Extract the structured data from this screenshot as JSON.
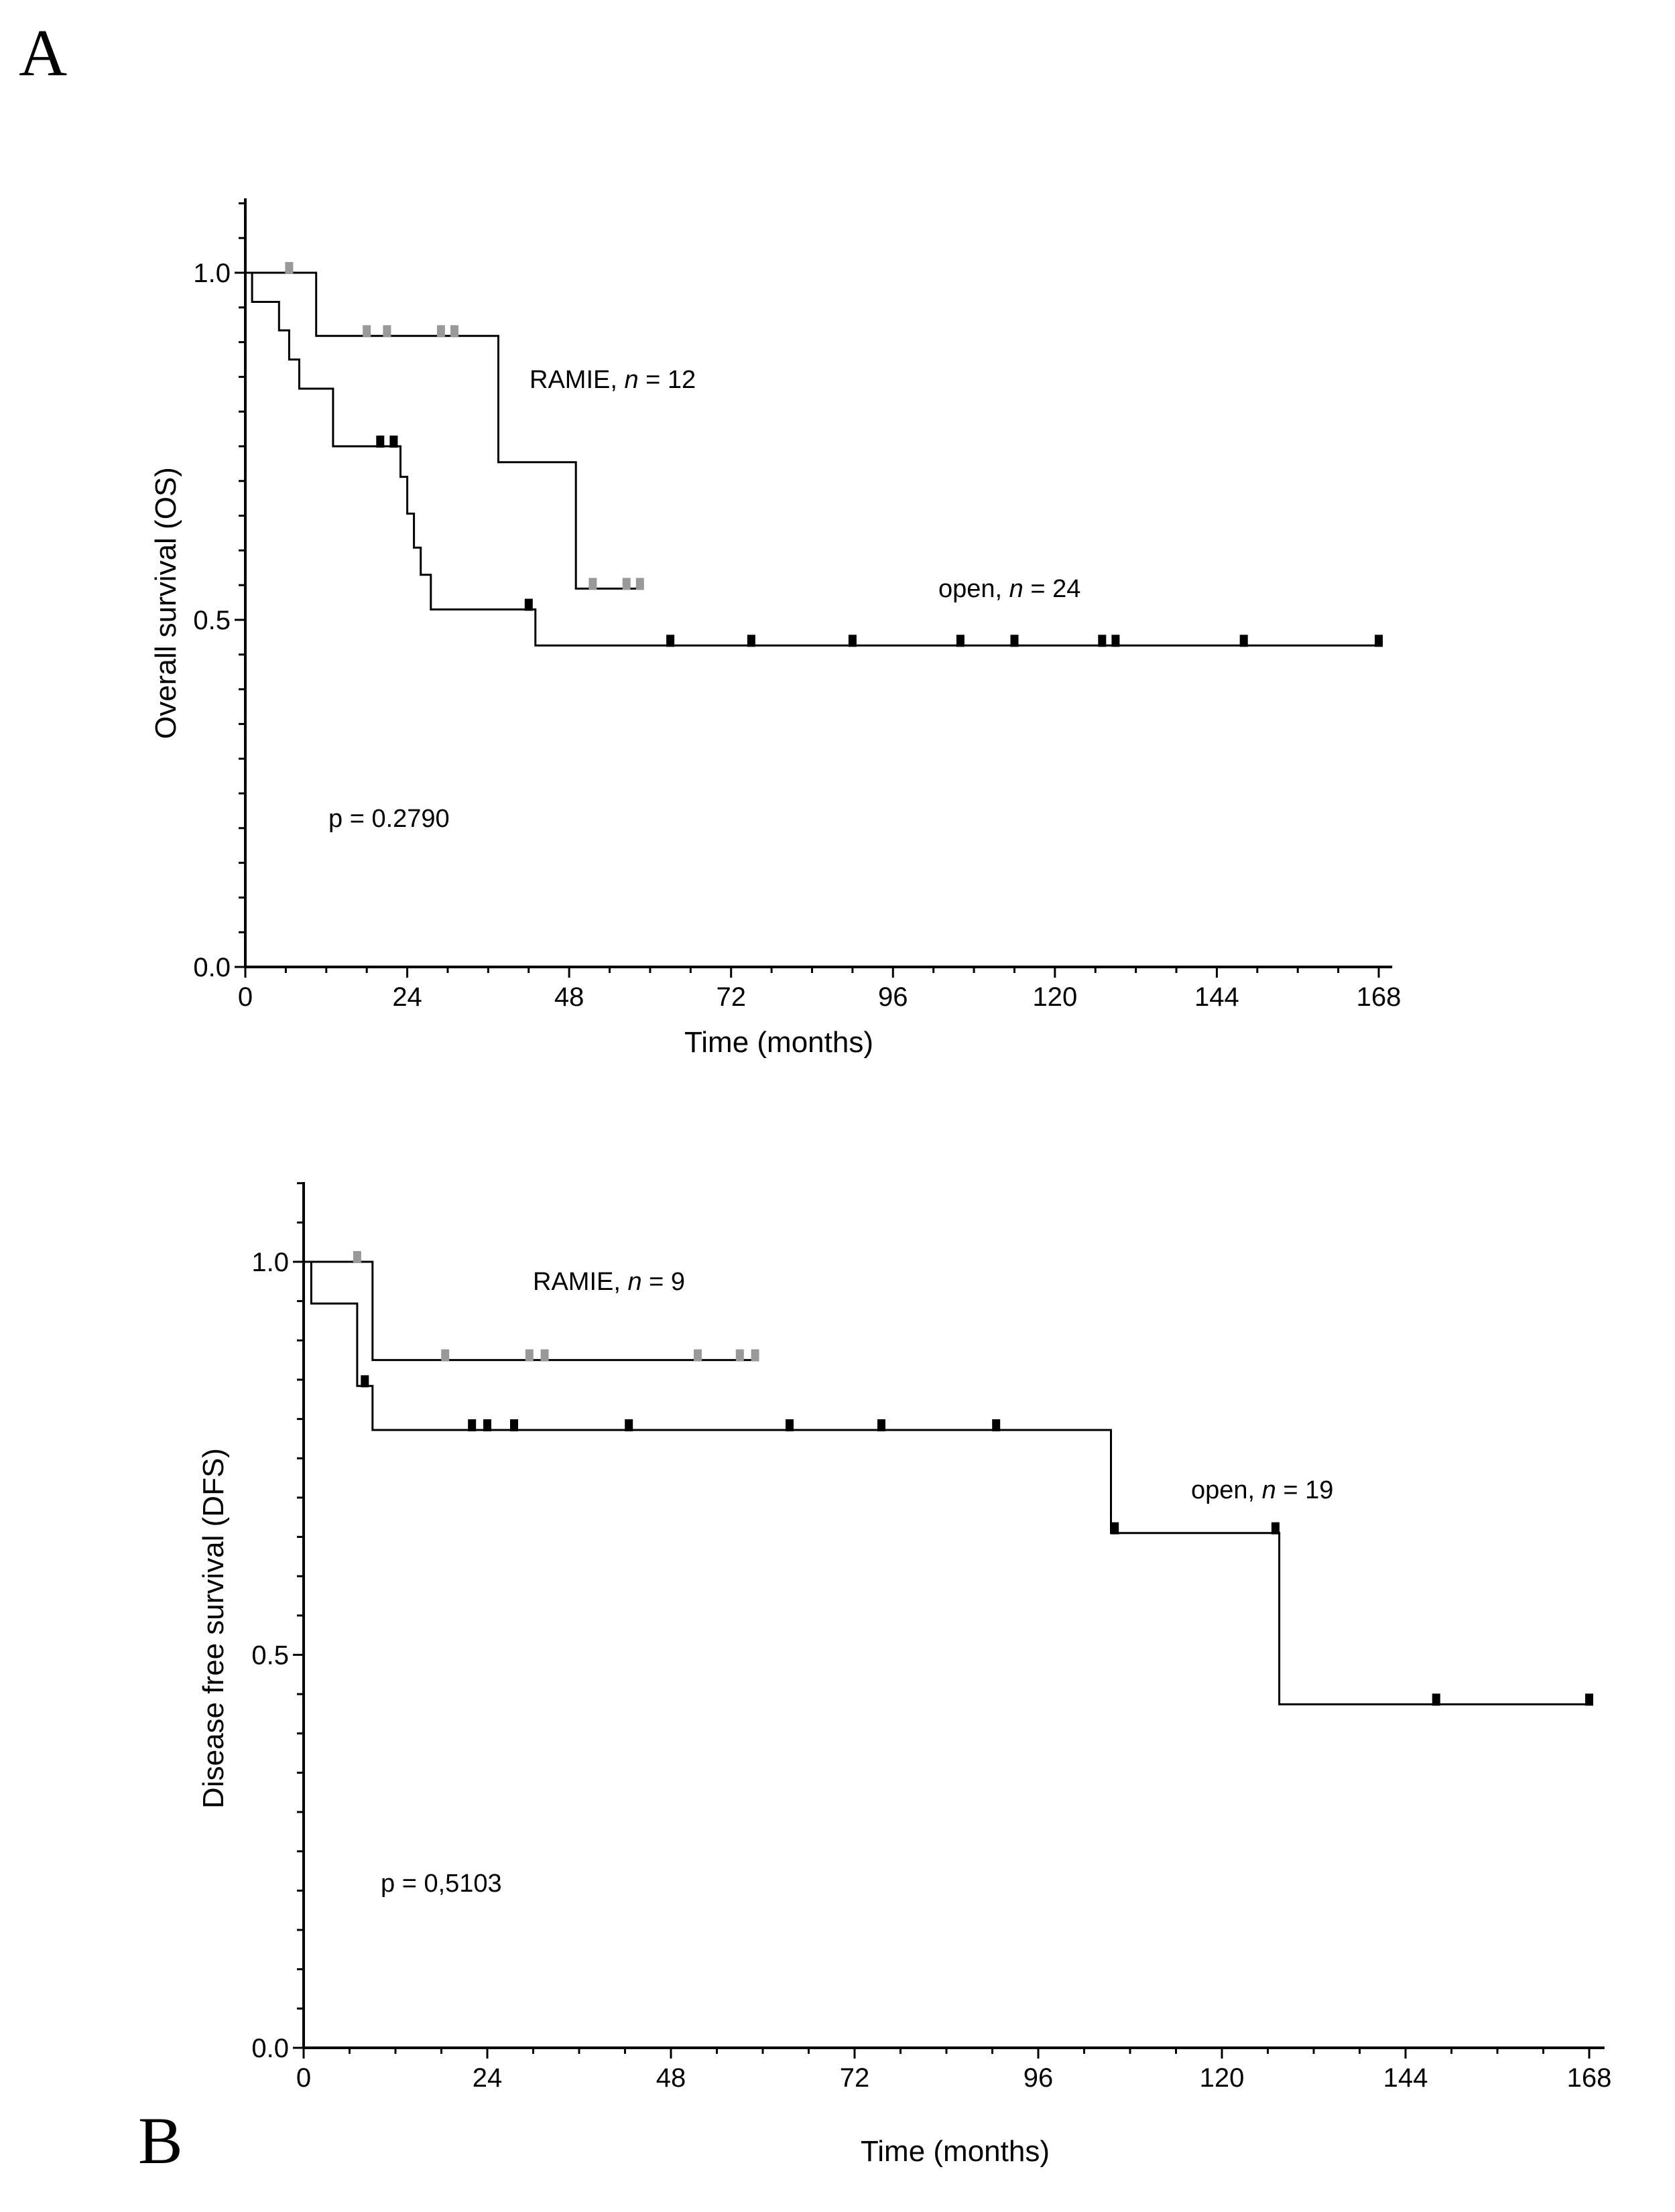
{
  "chart_data": [
    {
      "type": "line",
      "panel_label": "A",
      "title": "",
      "xlabel": "Time (months)",
      "ylabel": "Overall survival (OS)",
      "xlim": [
        0,
        170
      ],
      "ylim": [
        0,
        1.1
      ],
      "xticks": [
        0,
        24,
        48,
        72,
        96,
        120,
        144,
        168
      ],
      "xtick_labels": [
        "0",
        "24",
        "48",
        "72",
        "96",
        "120",
        "144",
        "168"
      ],
      "yticks": [
        0,
        0.5,
        1
      ],
      "ytick_labels": [
        "0.0",
        "0.5",
        "1.0"
      ],
      "annotations": {
        "p_value": "p = 0.2790"
      },
      "series": [
        {
          "name": "RAMIE",
          "label_prefix": "RAMIE, ",
          "label_n_var": "n",
          "label_n_value": " = 12",
          "censor_color": "#999999",
          "steps": [
            [
              0,
              1.0
            ],
            [
              10.5,
              0.909
            ],
            [
              37.5,
              0.727
            ],
            [
              49,
              0.545
            ],
            [
              59,
              0.545
            ]
          ],
          "censored": [
            [
              6.5,
              1.0
            ],
            [
              18,
              0.909
            ],
            [
              21,
              0.909
            ],
            [
              29,
              0.909
            ],
            [
              31,
              0.909
            ],
            [
              51.5,
              0.545
            ],
            [
              56.5,
              0.545
            ],
            [
              58.5,
              0.545
            ]
          ]
        },
        {
          "name": "open",
          "label_prefix": "open, ",
          "label_n_var": "n",
          "label_n_value": " = 24",
          "censor_color": "#000000",
          "steps": [
            [
              0,
              1.0
            ],
            [
              1,
              0.958
            ],
            [
              5,
              0.917
            ],
            [
              6.5,
              0.875
            ],
            [
              8,
              0.833
            ],
            [
              13,
              0.75
            ],
            [
              23,
              0.706
            ],
            [
              24,
              0.653
            ],
            [
              25,
              0.604
            ],
            [
              26,
              0.565
            ],
            [
              27.5,
              0.515
            ],
            [
              43,
              0.463
            ],
            [
              168,
              0.463
            ]
          ],
          "censored": [
            [
              20,
              0.75
            ],
            [
              22,
              0.75
            ],
            [
              42,
              0.515
            ],
            [
              63,
              0.463
            ],
            [
              75,
              0.463
            ],
            [
              90,
              0.463
            ],
            [
              106,
              0.463
            ],
            [
              114,
              0.463
            ],
            [
              127,
              0.463
            ],
            [
              129,
              0.463
            ],
            [
              148,
              0.463
            ],
            [
              168,
              0.463
            ]
          ]
        }
      ]
    },
    {
      "type": "line",
      "panel_label": "B",
      "title": "",
      "xlabel": "Time (months)",
      "ylabel": "Disease free survival (DFS)",
      "xlim": [
        0,
        170
      ],
      "ylim": [
        0,
        1.1
      ],
      "xticks": [
        0,
        24,
        48,
        72,
        96,
        120,
        144,
        168
      ],
      "xtick_labels": [
        "0",
        "24",
        "48",
        "72",
        "96",
        "120",
        "144",
        "168"
      ],
      "yticks": [
        0,
        0.5,
        1
      ],
      "ytick_labels": [
        "0.0",
        "0.5",
        "1.0"
      ],
      "annotations": {
        "p_value": "p = 0,5103"
      },
      "series": [
        {
          "name": "RAMIE",
          "label_prefix": "RAMIE, ",
          "label_n_var": "n",
          "label_n_value": " = 9",
          "censor_color": "#999999",
          "steps": [
            [
              0,
              1.0
            ],
            [
              9,
              0.875
            ],
            [
              59,
              0.875
            ]
          ],
          "censored": [
            [
              7,
              1.0
            ],
            [
              18.5,
              0.875
            ],
            [
              29.5,
              0.875
            ],
            [
              31.5,
              0.875
            ],
            [
              51.5,
              0.875
            ],
            [
              57,
              0.875
            ],
            [
              59,
              0.875
            ]
          ]
        },
        {
          "name": "open",
          "label_prefix": "open, ",
          "label_n_var": "n",
          "label_n_value": " = 19",
          "censor_color": "#000000",
          "steps": [
            [
              0,
              1.0
            ],
            [
              1,
              0.947
            ],
            [
              7,
              0.842
            ],
            [
              9,
              0.786
            ],
            [
              105.5,
              0.655
            ],
            [
              127.5,
              0.437
            ],
            [
              168,
              0.437
            ]
          ],
          "censored": [
            [
              8,
              0.842
            ],
            [
              22,
              0.786
            ],
            [
              24,
              0.786
            ],
            [
              27.5,
              0.786
            ],
            [
              42.5,
              0.786
            ],
            [
              63.5,
              0.786
            ],
            [
              75.5,
              0.786
            ],
            [
              90.5,
              0.786
            ],
            [
              106,
              0.655
            ],
            [
              127,
              0.655
            ],
            [
              148,
              0.437
            ],
            [
              168,
              0.437
            ]
          ]
        }
      ]
    }
  ]
}
